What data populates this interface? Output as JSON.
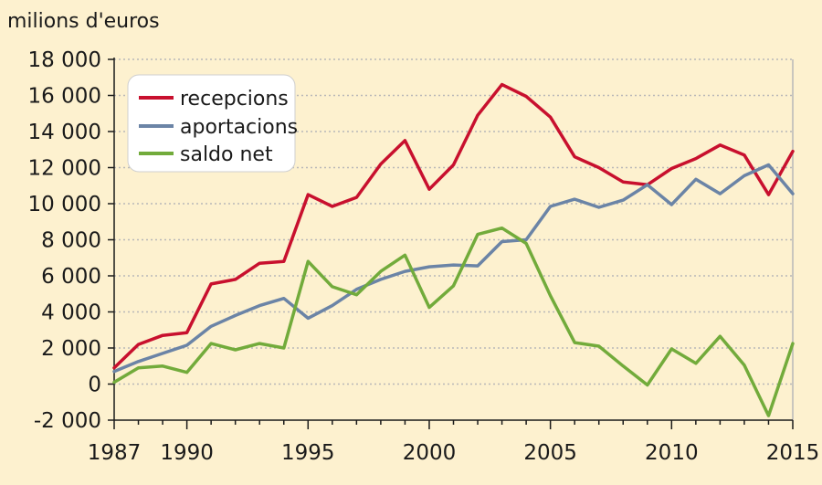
{
  "chart_data": {
    "type": "line",
    "ylabel": "milions d'euros",
    "ylim": [
      -2000,
      18000
    ],
    "yticks": [
      -2000,
      0,
      2000,
      4000,
      6000,
      8000,
      10000,
      12000,
      14000,
      16000,
      18000
    ],
    "ytick_labels": [
      "-2 000",
      "0",
      "2 000",
      "4 000",
      "6 000",
      "8 000",
      "10 000",
      "12 000",
      "14 000",
      "16 000",
      "18 000"
    ],
    "xlim": [
      1987,
      2015
    ],
    "xticks": [
      1987,
      1990,
      1995,
      2000,
      2005,
      2010,
      2015
    ],
    "xtick_labels": [
      "1987",
      "1990",
      "1995",
      "2000",
      "2005",
      "2010",
      "2015"
    ],
    "grid": true,
    "legend_position": "top-left",
    "x": [
      1987,
      1988,
      1989,
      1990,
      1991,
      1992,
      1993,
      1994,
      1995,
      1996,
      1997,
      1998,
      1999,
      2000,
      2001,
      2002,
      2003,
      2004,
      2005,
      2006,
      2007,
      2008,
      2009,
      2010,
      2011,
      2012,
      2013,
      2014,
      2015
    ],
    "series": [
      {
        "name": "recepcions",
        "color": "#c8102e",
        "values": [
          900,
          2200,
          2700,
          2850,
          5550,
          5800,
          6700,
          6800,
          10500,
          9850,
          10350,
          12200,
          13500,
          10800,
          12150,
          14900,
          16600,
          15950,
          14800,
          12600,
          12000,
          11200,
          11050,
          11950,
          12500,
          13250,
          12700,
          10500,
          12900
        ]
      },
      {
        "name": "aportacions",
        "color": "#6b84a6",
        "values": [
          700,
          1250,
          1700,
          2150,
          3200,
          3800,
          4350,
          4750,
          3650,
          4350,
          5250,
          5800,
          6250,
          6500,
          6600,
          6550,
          7900,
          8000,
          9850,
          10250,
          9800,
          10200,
          11050,
          9950,
          11350,
          10550,
          11550,
          12150,
          10550
        ]
      },
      {
        "name": "saldo net",
        "color": "#72ab3b",
        "values": [
          100,
          900,
          1000,
          650,
          2250,
          1900,
          2250,
          2000,
          6800,
          5400,
          4950,
          6250,
          7150,
          4250,
          5450,
          8300,
          8650,
          7800,
          4900,
          2300,
          2100,
          1000,
          -50,
          1950,
          1150,
          2650,
          1050,
          -1750,
          2250
        ]
      }
    ]
  }
}
